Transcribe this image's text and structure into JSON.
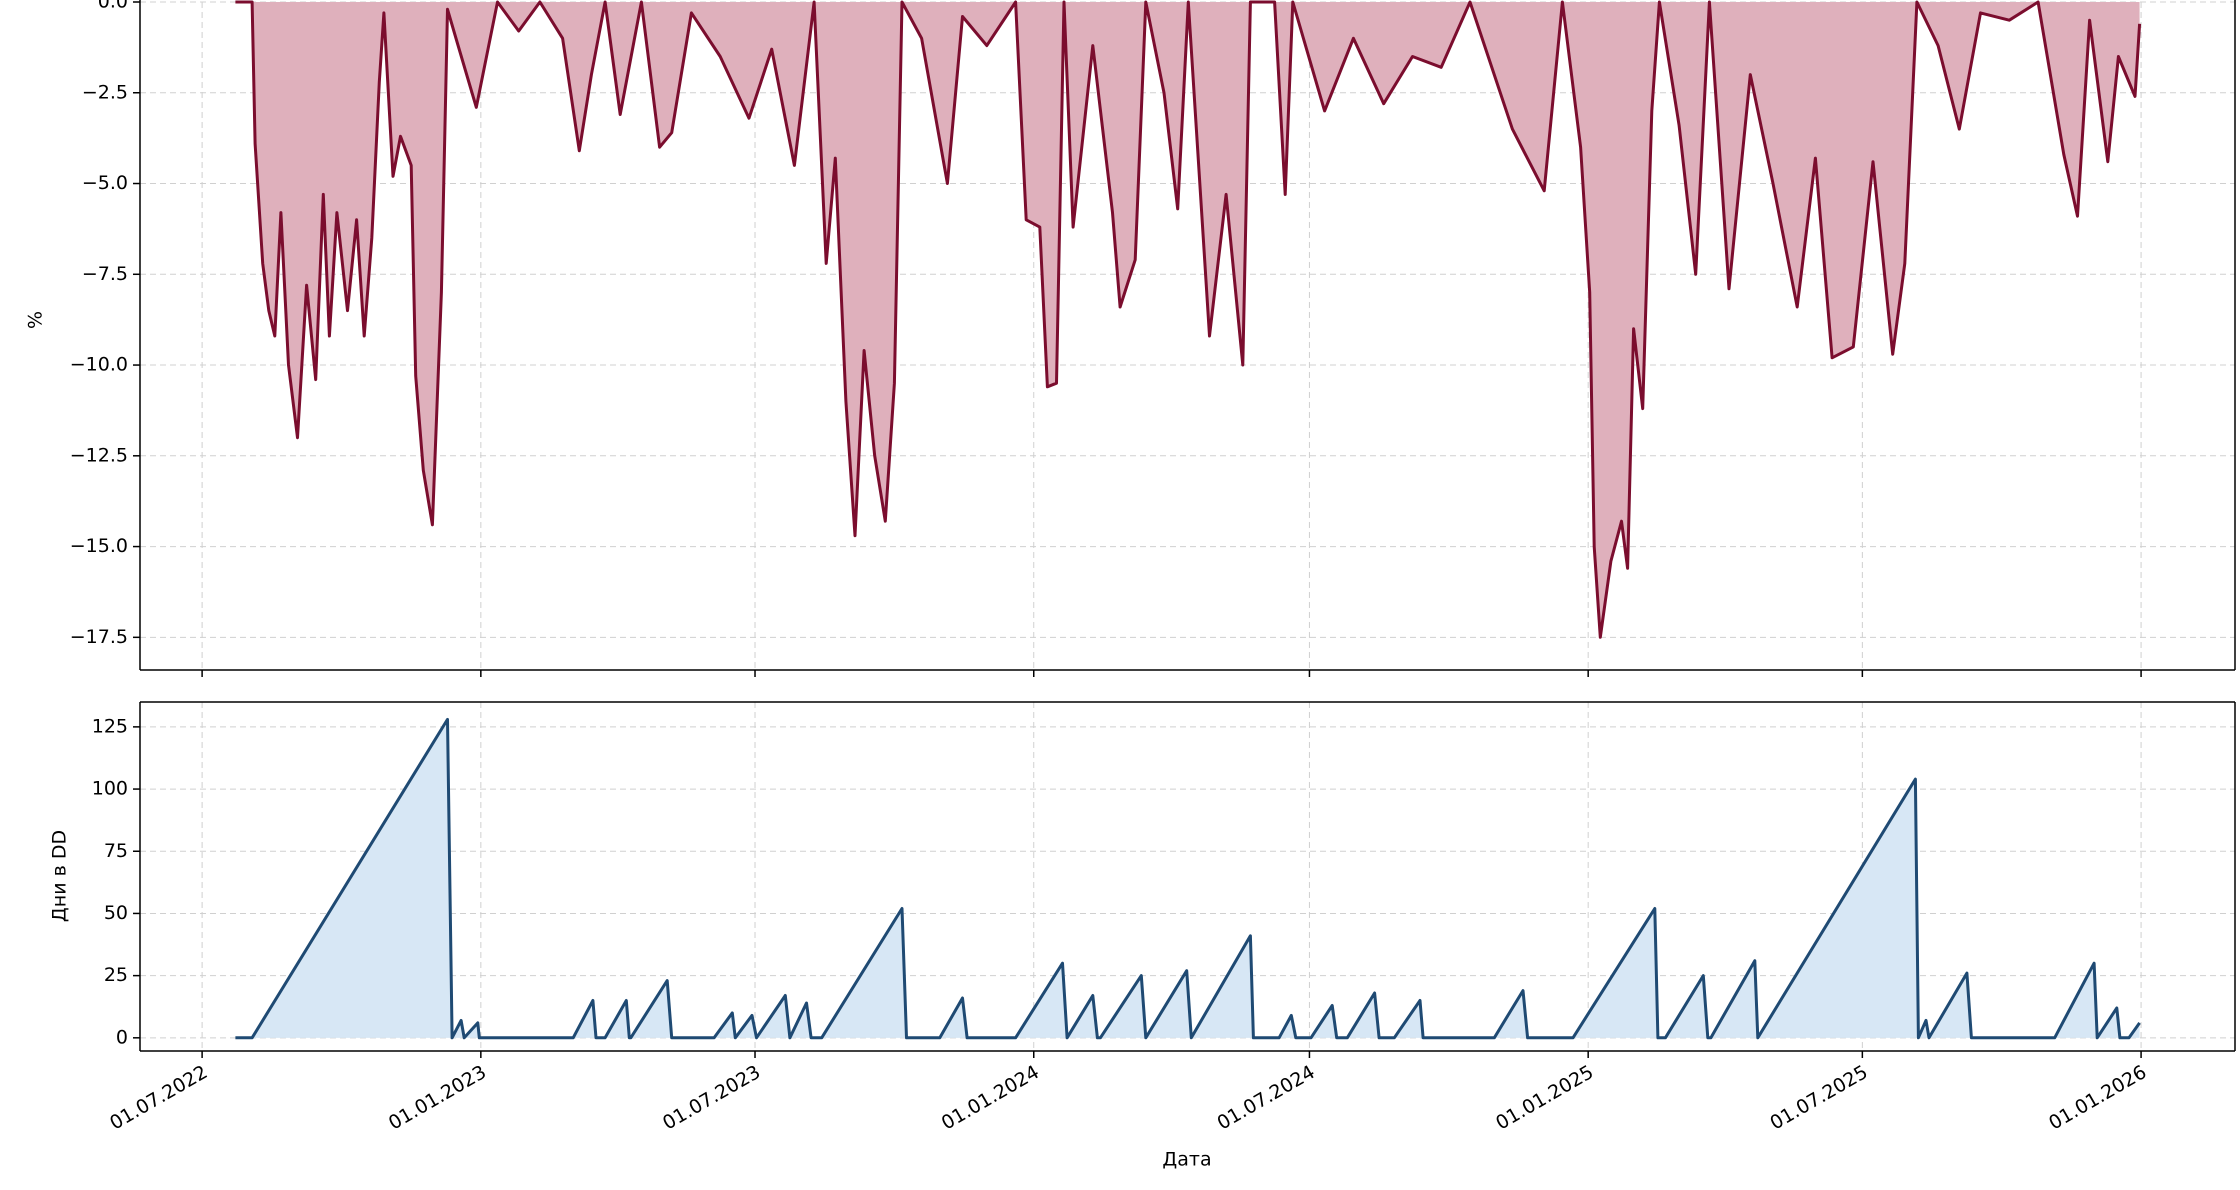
{
  "chart_data": [
    {
      "type": "area",
      "ylabel": "%",
      "ylim": [
        -18.4,
        0
      ],
      "yticks": [
        {
          "value": 0,
          "label": "0.0"
        },
        {
          "value": -2.5,
          "label": "−2.5"
        },
        {
          "value": -5,
          "label": "−5.0"
        },
        {
          "value": -7.5,
          "label": "−7.5"
        },
        {
          "value": -10,
          "label": "−10.0"
        },
        {
          "value": -12.5,
          "label": "−12.5"
        },
        {
          "value": -15,
          "label": "−15.0"
        },
        {
          "value": -17.5,
          "label": "−17.5"
        }
      ],
      "grid": true,
      "x": [
        "2022-07-23",
        "2022-08-03",
        "2022-08-05",
        "2022-08-10",
        "2022-08-14",
        "2022-08-18",
        "2022-08-22",
        "2022-08-27",
        "2022-09-02",
        "2022-09-08",
        "2022-09-14",
        "2022-09-19",
        "2022-09-23",
        "2022-09-28",
        "2022-10-05",
        "2022-10-11",
        "2022-10-16",
        "2022-10-21",
        "2022-10-26",
        "2022-10-29",
        "2022-11-04",
        "2022-11-09",
        "2022-11-16",
        "2022-11-19",
        "2022-11-24",
        "2022-11-30",
        "2022-12-06",
        "2022-12-10",
        "2022-12-17",
        "2022-12-29",
        "2023-01-12",
        "2023-01-26",
        "2023-02-09",
        "2023-02-24",
        "2023-03-07",
        "2023-03-15",
        "2023-03-24",
        "2023-04-03",
        "2023-04-17",
        "2023-04-29",
        "2023-05-07",
        "2023-05-20",
        "2023-06-08",
        "2023-06-27",
        "2023-07-12",
        "2023-07-27",
        "2023-08-09",
        "2023-08-17",
        "2023-08-23",
        "2023-08-30",
        "2023-09-05",
        "2023-09-11",
        "2023-09-18",
        "2023-09-25",
        "2023-10-01",
        "2023-10-06",
        "2023-10-19",
        "2023-11-05",
        "2023-11-15",
        "2023-12-01",
        "2023-12-20",
        "2023-12-27",
        "2024-01-05",
        "2024-01-10",
        "2024-01-16",
        "2024-01-21",
        "2024-01-27",
        "2024-02-09",
        "2024-02-22",
        "2024-02-27",
        "2024-03-08",
        "2024-03-15",
        "2024-03-27",
        "2024-04-05",
        "2024-04-12",
        "2024-04-26",
        "2024-05-07",
        "2024-05-18",
        "2024-05-23",
        "2024-06-08",
        "2024-06-15",
        "2024-06-20",
        "2024-07-11",
        "2024-07-30",
        "2024-08-19",
        "2024-09-07",
        "2024-09-26",
        "2024-10-15",
        "2024-11-12",
        "2024-12-03",
        "2024-12-15",
        "2024-12-27",
        "2025-01-02",
        "2025-01-05",
        "2025-01-09",
        "2025-01-16",
        "2025-01-23",
        "2025-01-27",
        "2025-01-31",
        "2025-02-06",
        "2025-02-12",
        "2025-02-17",
        "2025-03-02",
        "2025-03-13",
        "2025-03-22",
        "2025-04-04",
        "2025-04-18",
        "2025-05-03",
        "2025-05-19",
        "2025-05-31",
        "2025-06-11",
        "2025-06-25",
        "2025-07-08",
        "2025-07-21",
        "2025-07-29",
        "2025-08-06",
        "2025-08-20",
        "2025-09-03",
        "2025-09-17",
        "2025-10-06",
        "2025-10-25",
        "2025-11-11",
        "2025-11-20",
        "2025-11-28",
        "2025-12-10",
        "2025-12-17",
        "2025-12-28",
        "2025-12-31"
      ],
      "series": [
        {
          "color": "#7b0d2e",
          "fill": "#dfb0bc",
          "values": [
            0,
            0,
            -3.9,
            -7.2,
            -8.5,
            -9.2,
            -5.8,
            -10,
            -12,
            -7.8,
            -10.4,
            -5.3,
            -9.2,
            -5.8,
            -8.5,
            -6,
            -9.2,
            -6.5,
            -2.2,
            -0.3,
            -4.8,
            -3.7,
            -4.5,
            -10.3,
            -12.9,
            -14.4,
            -8,
            -0.2,
            -1.2,
            -2.9,
            0,
            -0.8,
            0,
            -1,
            -4.1,
            -2,
            0,
            -3.1,
            0,
            -4,
            -3.6,
            -0.3,
            -1.5,
            -3.2,
            -1.3,
            -4.5,
            0,
            -7.2,
            -4.3,
            -11,
            -14.7,
            -9.6,
            -12.5,
            -14.3,
            -10.5,
            0,
            -1,
            -5,
            -0.4,
            -1.2,
            0,
            -6,
            -6.2,
            -10.6,
            -10.5,
            0,
            -6.2,
            -1.2,
            -5.8,
            -8.4,
            -7.1,
            0,
            -2.5,
            -5.7,
            0,
            -9.2,
            -5.3,
            -10,
            0,
            0,
            -5.3,
            0,
            -3,
            -1,
            -2.8,
            -1.5,
            -1.8,
            0,
            -3.5,
            -5.2,
            0,
            -4,
            -8,
            -15,
            -17.5,
            -15.4,
            -14.3,
            -15.6,
            -9,
            -11.2,
            -3,
            0,
            -3.4,
            -7.5,
            0,
            -7.9,
            -2,
            -5,
            -8.4,
            -4.3,
            -9.8,
            -9.5,
            -4.4,
            -9.7,
            -7.2,
            0,
            -1.2,
            -3.5,
            -0.3,
            -0.5,
            0,
            -4.2,
            -5.9,
            -0.5,
            -4.4,
            -1.5,
            -2.6,
            -0.6
          ]
        }
      ]
    },
    {
      "type": "area",
      "ylabel": "Дни в DD",
      "xlabel": "Дата",
      "ylim": [
        -5.3,
        135
      ],
      "yticks": [
        0,
        25,
        50,
        75,
        100,
        125
      ],
      "grid": true,
      "xlim": [
        "2022-05-21",
        "2026-03-04"
      ],
      "xticks": [
        {
          "value": "2022-07-01",
          "label": "01.07.2022"
        },
        {
          "value": "2023-01-01",
          "label": "01.01.2023"
        },
        {
          "value": "2023-07-01",
          "label": "01.07.2023"
        },
        {
          "value": "2024-01-01",
          "label": "01.01.2024"
        },
        {
          "value": "2024-07-01",
          "label": "01.07.2024"
        },
        {
          "value": "2025-01-01",
          "label": "01.01.2025"
        },
        {
          "value": "2025-07-01",
          "label": "01.07.2025"
        },
        {
          "value": "2026-01-01",
          "label": "01.01.2026"
        }
      ],
      "x": [
        "2022-07-23",
        "2022-08-03",
        "2022-12-10",
        "2022-12-13",
        "2022-12-19",
        "2022-12-21",
        "2022-12-30",
        "2022-12-31",
        "2023-03-03",
        "2023-03-16",
        "2023-03-18",
        "2023-03-24",
        "2023-04-07",
        "2023-04-09",
        "2023-04-10",
        "2023-05-04",
        "2023-05-07",
        "2023-06-04",
        "2023-06-16",
        "2023-06-18",
        "2023-06-29",
        "2023-07-02",
        "2023-07-21",
        "2023-07-24",
        "2023-08-04",
        "2023-08-07",
        "2023-08-14",
        "2023-10-06",
        "2023-10-09",
        "2023-10-31",
        "2023-11-15",
        "2023-11-18",
        "2023-12-20",
        "2024-01-20",
        "2024-01-23",
        "2024-02-09",
        "2024-02-12",
        "2024-02-14",
        "2024-03-12",
        "2024-03-15",
        "2024-04-11",
        "2024-04-14",
        "2024-05-23",
        "2024-05-25",
        "2024-06-11",
        "2024-06-19",
        "2024-06-22",
        "2024-07-02",
        "2024-07-16",
        "2024-07-19",
        "2024-07-26",
        "2024-08-13",
        "2024-08-16",
        "2024-08-26",
        "2024-09-12",
        "2024-09-14",
        "2024-10-31",
        "2024-11-19",
        "2024-11-22",
        "2024-12-22",
        "2025-02-14",
        "2025-02-16",
        "2025-02-21",
        "2025-03-18",
        "2025-03-21",
        "2025-03-23",
        "2025-04-21",
        "2025-04-23",
        "2025-08-05",
        "2025-08-07",
        "2025-08-12",
        "2025-08-14",
        "2025-09-08",
        "2025-09-11",
        "2025-11-05",
        "2025-12-01",
        "2025-12-03",
        "2025-12-16",
        "2025-12-18",
        "2025-12-24",
        "2025-12-31"
      ],
      "series": [
        {
          "color": "#1f4a73",
          "fill": "#d7e7f5",
          "values": [
            0,
            0,
            128,
            0,
            7,
            0,
            6,
            0,
            0,
            15,
            0,
            0,
            15,
            0,
            0,
            23,
            0,
            0,
            10,
            0,
            9,
            0,
            17,
            0,
            14,
            0,
            0,
            52,
            0,
            0,
            16,
            0,
            0,
            30,
            0,
            17,
            0,
            0,
            25,
            0,
            27,
            0,
            41,
            0,
            0,
            9,
            0,
            0,
            13,
            0,
            0,
            18,
            0,
            0,
            15,
            0,
            0,
            19,
            0,
            0,
            52,
            0,
            0,
            25,
            0,
            0,
            31,
            0,
            104,
            0,
            7,
            0,
            26,
            0,
            0,
            30,
            0,
            12,
            0,
            0,
            6
          ]
        }
      ]
    }
  ]
}
